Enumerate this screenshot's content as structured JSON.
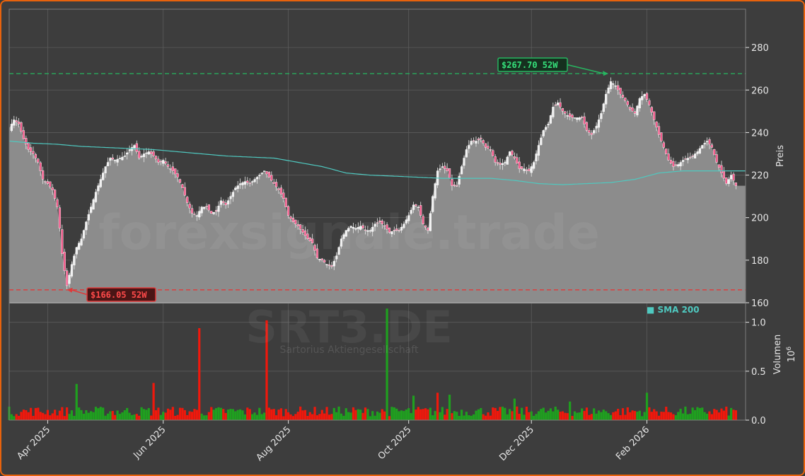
{
  "chart_data": {
    "type": "candlestick",
    "ticker": "SRT3.DE",
    "company": "Sartorius Aktiengesellschaft",
    "watermark": "forexsignale.trade",
    "colors": {
      "background": "#3d3d3d",
      "price_area": "#8c8c8c",
      "up": "#1fa01f",
      "down": "#f0180c",
      "sma": "#4fc9c0",
      "high_line": "#27b560",
      "low_line": "#e03a3a",
      "grid": "#5c5c5c",
      "frame": "#e8620c"
    },
    "price_panel": {
      "ylabel": "Preis",
      "ylim": [
        160,
        298
      ],
      "yticks": [
        160,
        180,
        200,
        220,
        240,
        260,
        280
      ],
      "sma_legend": "■ SMA 200",
      "high_52w": {
        "value": 267.7,
        "label": "$267.70 52W"
      },
      "low_52w": {
        "value": 166.05,
        "label": "$166.05 52W"
      },
      "last_close": 215,
      "closes": [
        [
          0,
          242
        ],
        [
          2,
          246
        ],
        [
          4,
          244
        ],
        [
          6,
          237
        ],
        [
          8,
          232
        ],
        [
          10,
          230
        ],
        [
          12,
          226
        ],
        [
          14,
          218
        ],
        [
          16,
          216
        ],
        [
          18,
          213
        ],
        [
          20,
          205
        ],
        [
          21,
          195
        ],
        [
          22,
          183
        ],
        [
          23,
          175
        ],
        [
          24,
          168
        ],
        [
          26,
          178
        ],
        [
          28,
          186
        ],
        [
          30,
          190
        ],
        [
          32,
          198
        ],
        [
          34,
          205
        ],
        [
          36,
          212
        ],
        [
          38,
          218
        ],
        [
          40,
          224
        ],
        [
          42,
          228
        ],
        [
          44,
          227
        ],
        [
          46,
          228
        ],
        [
          48,
          229
        ],
        [
          50,
          232
        ],
        [
          52,
          234
        ],
        [
          54,
          228
        ],
        [
          56,
          230
        ],
        [
          58,
          231
        ],
        [
          60,
          229
        ],
        [
          62,
          226
        ],
        [
          64,
          227
        ],
        [
          66,
          224
        ],
        [
          68,
          222
        ],
        [
          70,
          219
        ],
        [
          72,
          214
        ],
        [
          74,
          207
        ],
        [
          76,
          202
        ],
        [
          78,
          201
        ],
        [
          80,
          205
        ],
        [
          82,
          205
        ],
        [
          84,
          202
        ],
        [
          86,
          203
        ],
        [
          88,
          208
        ],
        [
          90,
          206
        ],
        [
          92,
          210
        ],
        [
          94,
          214
        ],
        [
          96,
          216
        ],
        [
          98,
          217
        ],
        [
          100,
          216
        ],
        [
          102,
          218
        ],
        [
          104,
          220
        ],
        [
          106,
          222
        ],
        [
          108,
          219
        ],
        [
          110,
          216
        ],
        [
          112,
          213
        ],
        [
          114,
          209
        ],
        [
          116,
          201
        ],
        [
          118,
          198
        ],
        [
          120,
          196
        ],
        [
          122,
          193
        ],
        [
          124,
          190
        ],
        [
          126,
          188
        ],
        [
          128,
          181
        ],
        [
          130,
          180
        ],
        [
          132,
          178
        ],
        [
          134,
          177
        ],
        [
          136,
          182
        ],
        [
          138,
          190
        ],
        [
          140,
          194
        ],
        [
          142,
          196
        ],
        [
          144,
          195
        ],
        [
          146,
          196
        ],
        [
          148,
          194
        ],
        [
          150,
          194
        ],
        [
          152,
          197
        ],
        [
          154,
          198
        ],
        [
          156,
          196
        ],
        [
          158,
          193
        ],
        [
          160,
          194
        ],
        [
          162,
          194
        ],
        [
          164,
          197
        ],
        [
          166,
          201
        ],
        [
          168,
          206
        ],
        [
          170,
          205
        ],
        [
          172,
          197
        ],
        [
          174,
          194
        ],
        [
          176,
          210
        ],
        [
          178,
          222
        ],
        [
          180,
          224
        ],
        [
          182,
          222
        ],
        [
          184,
          215
        ],
        [
          186,
          215
        ],
        [
          188,
          224
        ],
        [
          190,
          232
        ],
        [
          192,
          236
        ],
        [
          194,
          236
        ],
        [
          196,
          237
        ],
        [
          198,
          233
        ],
        [
          200,
          232
        ],
        [
          202,
          226
        ],
        [
          204,
          225
        ],
        [
          206,
          226
        ],
        [
          208,
          231
        ],
        [
          210,
          228
        ],
        [
          212,
          223
        ],
        [
          214,
          223
        ],
        [
          216,
          222
        ],
        [
          218,
          226
        ],
        [
          220,
          234
        ],
        [
          222,
          241
        ],
        [
          224,
          244
        ],
        [
          226,
          252
        ],
        [
          228,
          254
        ],
        [
          230,
          250
        ],
        [
          232,
          248
        ],
        [
          234,
          247
        ],
        [
          236,
          247
        ],
        [
          238,
          247
        ],
        [
          240,
          241
        ],
        [
          242,
          239
        ],
        [
          244,
          243
        ],
        [
          246,
          249
        ],
        [
          248,
          258
        ],
        [
          250,
          264
        ],
        [
          252,
          262
        ],
        [
          254,
          258
        ],
        [
          256,
          255
        ],
        [
          258,
          251
        ],
        [
          260,
          249
        ],
        [
          262,
          256
        ],
        [
          264,
          258
        ],
        [
          266,
          253
        ],
        [
          268,
          246
        ],
        [
          270,
          239
        ],
        [
          272,
          233
        ],
        [
          274,
          227
        ],
        [
          276,
          224
        ],
        [
          278,
          225
        ],
        [
          280,
          227
        ],
        [
          282,
          228
        ],
        [
          284,
          229
        ],
        [
          286,
          231
        ],
        [
          288,
          234
        ],
        [
          290,
          236
        ],
        [
          292,
          233
        ],
        [
          294,
          226
        ],
        [
          296,
          221
        ],
        [
          298,
          216
        ],
        [
          300,
          220
        ],
        [
          302,
          215
        ],
        [
          306,
          215
        ]
      ],
      "sma200": [
        [
          0,
          236
        ],
        [
          10,
          235
        ],
        [
          20,
          234.5
        ],
        [
          30,
          233.5
        ],
        [
          40,
          233
        ],
        [
          50,
          232.5
        ],
        [
          60,
          232
        ],
        [
          70,
          231
        ],
        [
          80,
          230
        ],
        [
          90,
          229
        ],
        [
          100,
          228.5
        ],
        [
          110,
          228
        ],
        [
          120,
          226
        ],
        [
          130,
          224
        ],
        [
          140,
          221
        ],
        [
          150,
          220
        ],
        [
          160,
          219.5
        ],
        [
          170,
          219
        ],
        [
          180,
          218.5
        ],
        [
          190,
          218.5
        ],
        [
          200,
          218.5
        ],
        [
          210,
          217.5
        ],
        [
          220,
          216
        ],
        [
          230,
          215.5
        ],
        [
          240,
          216
        ],
        [
          250,
          216.5
        ],
        [
          260,
          218
        ],
        [
          270,
          221
        ],
        [
          280,
          222
        ],
        [
          290,
          222
        ],
        [
          300,
          222
        ],
        [
          306,
          222
        ]
      ]
    },
    "volume_panel": {
      "ylabel": "Volumen",
      "exponent": "10^6",
      "ylim": [
        0,
        1.2
      ],
      "yticks": [
        0.0,
        0.5,
        1.0
      ],
      "ytick_labels": [
        "0.0",
        "0.5",
        "1.0"
      ],
      "spikes": [
        {
          "x": 60,
          "value": 0.38,
          "dir": "down"
        },
        {
          "x": 79,
          "value": 0.94,
          "dir": "down"
        },
        {
          "x": 107,
          "value": 1.02,
          "dir": "down"
        },
        {
          "x": 157,
          "value": 1.14,
          "dir": "up"
        },
        {
          "x": 28,
          "value": 0.37,
          "dir": "up"
        },
        {
          "x": 168,
          "value": 0.25,
          "dir": "up"
        },
        {
          "x": 178,
          "value": 0.28,
          "dir": "down"
        },
        {
          "x": 183,
          "value": 0.26,
          "dir": "up"
        },
        {
          "x": 210,
          "value": 0.22,
          "dir": "up"
        },
        {
          "x": 233,
          "value": 0.19,
          "dir": "up"
        },
        {
          "x": 265,
          "value": 0.28,
          "dir": "up"
        }
      ]
    },
    "x_axis": {
      "domain": [
        0,
        306
      ],
      "ticks": [
        {
          "x": 16,
          "label": "Apr 2025"
        },
        {
          "x": 64,
          "label": "Jun 2025"
        },
        {
          "x": 116,
          "label": "Aug 2025"
        },
        {
          "x": 166,
          "label": "Oct 2025"
        },
        {
          "x": 217,
          "label": "Dec 2025"
        },
        {
          "x": 265,
          "label": "Feb 2026"
        }
      ]
    }
  }
}
